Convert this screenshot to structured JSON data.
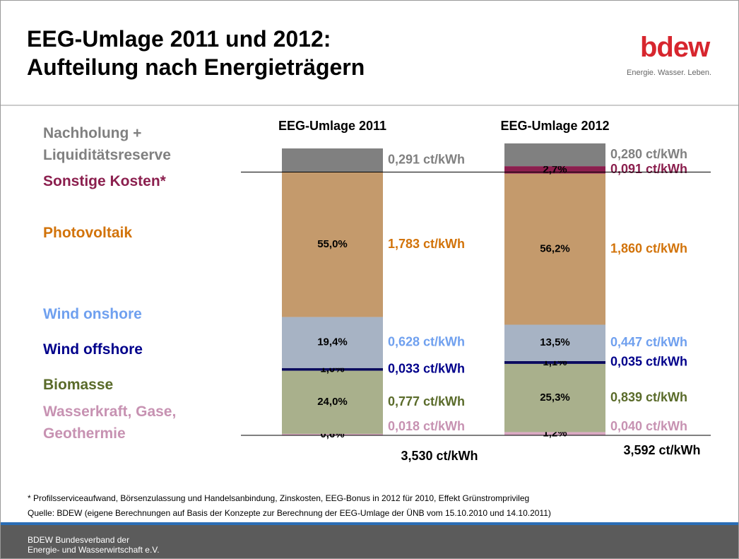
{
  "chart_data": {
    "type": "stacked_bar",
    "title": "EEG-Umlage 2011 und 2012: Aufteilung nach Energieträgern",
    "categories": [
      "EEG-Umlage 2011",
      "EEG-Umlage 2012"
    ],
    "series": [
      {
        "name": "Nachholung + Liquiditätsreserve",
        "color": "#808080",
        "label_color": "#808080",
        "values": [
          0.291,
          0.28
        ],
        "value_labels": [
          "0,291 ct/kWh",
          "0,280 ct/kWh"
        ]
      },
      {
        "name": "Sonstige Kosten*",
        "color": "#8b1f4e",
        "label_color": "#8b1f4e",
        "values": [
          null,
          0.091
        ],
        "value_labels": [
          null,
          "0,091 ct/kWh"
        ],
        "shares": [
          null,
          2.7
        ],
        "share_labels": [
          null,
          "2,7%"
        ]
      },
      {
        "name": "Photovoltaik",
        "color": "#c49a6c",
        "label_color": "#d2730a",
        "values": [
          1.783,
          1.86
        ],
        "value_labels": [
          "1,783 ct/kWh",
          "1,860 ct/kWh"
        ],
        "shares": [
          55.0,
          56.2
        ],
        "share_labels": [
          "55,0%",
          "56,2%"
        ]
      },
      {
        "name": "Wind onshore",
        "color": "#a7b3c4",
        "label_color": "#6fa0ef",
        "values": [
          0.628,
          0.447
        ],
        "value_labels": [
          "0,628 ct/kWh",
          "0,447 ct/kWh"
        ],
        "shares": [
          19.4,
          13.5
        ],
        "share_labels": [
          "19,4%",
          "13,5%"
        ]
      },
      {
        "name": "Wind offshore",
        "color": "#0b0b5e",
        "label_color": "#00008b",
        "values": [
          0.033,
          0.035
        ],
        "value_labels": [
          "0,033 ct/kWh",
          "0,035 ct/kWh"
        ],
        "shares": [
          1.0,
          1.1
        ],
        "share_labels": [
          "1,0%",
          "1,1%"
        ]
      },
      {
        "name": "Biomasse",
        "color": "#a9b08c",
        "label_color": "#5a6b2a",
        "values": [
          0.777,
          0.839
        ],
        "value_labels": [
          "0,777 ct/kWh",
          "0,839 ct/kWh"
        ],
        "shares": [
          24.0,
          25.3
        ],
        "share_labels": [
          "24,0%",
          "25,3%"
        ]
      },
      {
        "name": "Wasserkraft, Gase, Geothermie",
        "color": "#d9a9c2",
        "label_color": "#c792b2",
        "values": [
          0.018,
          0.04
        ],
        "value_labels": [
          "0,018 ct/kWh",
          "0,040 ct/kWh"
        ],
        "shares": [
          0.6,
          1.2
        ],
        "share_labels": [
          "0,6%",
          "1,2%"
        ]
      }
    ],
    "totals": [
      3.53,
      3.592
    ],
    "total_labels": [
      "3,530 ct/kWh",
      "3,592 ct/kWh"
    ]
  },
  "logo": {
    "name": "bdew",
    "tagline": "Energie. Wasser. Leben."
  },
  "footnote": "* Profilsserviceaufwand, Börsenzulassung und Handelsanbindung, Zinskosten, EEG-Bonus in  2012 für 2010, Effekt Grünstromprivileg",
  "source": "Quelle: BDEW (eigene Berechnungen auf Basis der Konzepte zur Berechnung der EEG-Umlage der ÜNB vom 15.10.2010 und 14.10.2011)",
  "footer": [
    "BDEW Bundesverband der",
    "Energie- und Wasserwirtschaft e.V."
  ]
}
